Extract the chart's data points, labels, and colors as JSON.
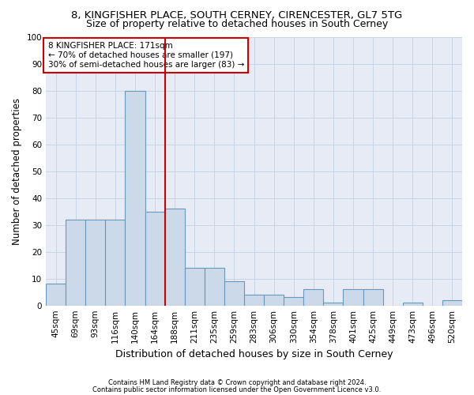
{
  "title1": "8, KINGFISHER PLACE, SOUTH CERNEY, CIRENCESTER, GL7 5TG",
  "title2": "Size of property relative to detached houses in South Cerney",
  "xlabel": "Distribution of detached houses by size in South Cerney",
  "ylabel": "Number of detached properties",
  "footer1": "Contains HM Land Registry data © Crown copyright and database right 2024.",
  "footer2": "Contains public sector information licensed under the Open Government Licence v3.0.",
  "categories": [
    "45sqm",
    "69sqm",
    "93sqm",
    "116sqm",
    "140sqm",
    "164sqm",
    "188sqm",
    "211sqm",
    "235sqm",
    "259sqm",
    "283sqm",
    "306sqm",
    "330sqm",
    "354sqm",
    "378sqm",
    "401sqm",
    "425sqm",
    "449sqm",
    "473sqm",
    "496sqm",
    "520sqm"
  ],
  "values": [
    8,
    32,
    32,
    32,
    80,
    35,
    36,
    14,
    14,
    9,
    4,
    4,
    3,
    6,
    1,
    6,
    6,
    0,
    1,
    0,
    2
  ],
  "bar_color": "#ccd9e8",
  "bar_edge_color": "#6699bb",
  "bar_edge_width": 0.8,
  "vline_x": 5.5,
  "vline_color": "#cc0000",
  "annotation_box_text": "8 KINGFISHER PLACE: 171sqm\n← 70% of detached houses are smaller (197)\n30% of semi-detached houses are larger (83) →",
  "box_edge_color": "#cc0000",
  "annotation_fontsize": 7.5,
  "ylim": [
    0,
    100
  ],
  "yticks": [
    0,
    10,
    20,
    30,
    40,
    50,
    60,
    70,
    80,
    90,
    100
  ],
  "grid_color": "#c8d4e4",
  "background_color": "#e6ebf5",
  "title1_fontsize": 9.5,
  "title2_fontsize": 9,
  "xlabel_fontsize": 9,
  "ylabel_fontsize": 8.5,
  "tick_fontsize": 7.5
}
